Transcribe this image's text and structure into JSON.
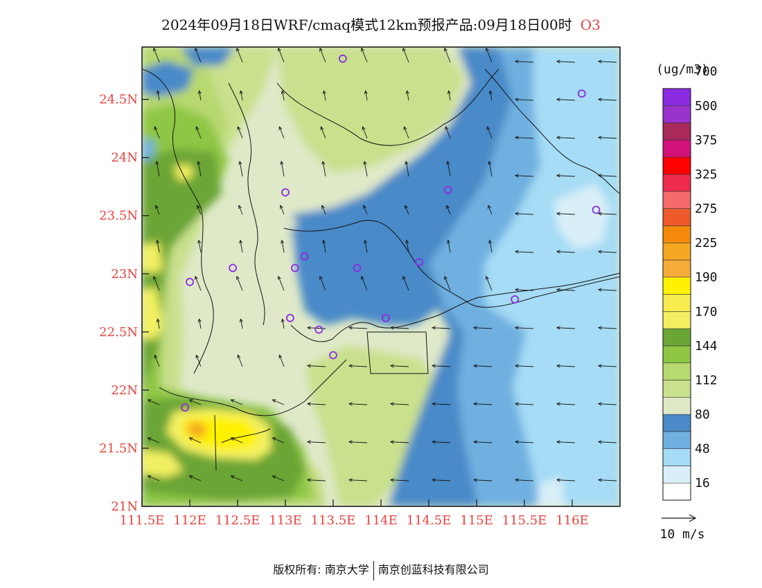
{
  "header": {
    "title": "2024年09月18日WRF/cmaq模式12km预报产品:09月18日00时",
    "species": "O3"
  },
  "map": {
    "lon_range": [
      111.5,
      116.5
    ],
    "lat_range": [
      21.0,
      24.95
    ],
    "lon_ticks": [
      "111.5E",
      "112E",
      "112.5E",
      "113E",
      "113.5E",
      "114E",
      "114.5E",
      "115E",
      "115.5E",
      "116E"
    ],
    "lat_ticks": [
      "21N",
      "21.5N",
      "22N",
      "22.5N",
      "23N",
      "23.5N",
      "24N",
      "24.5N"
    ],
    "station_markers": [
      [
        113.6,
        24.85
      ],
      [
        116.1,
        24.55
      ],
      [
        113.0,
        23.7
      ],
      [
        114.7,
        23.72
      ],
      [
        116.25,
        23.55
      ],
      [
        113.2,
        23.15
      ],
      [
        112.45,
        23.05
      ],
      [
        113.1,
        23.05
      ],
      [
        113.75,
        23.05
      ],
      [
        114.4,
        23.1
      ],
      [
        112.0,
        22.93
      ],
      [
        115.4,
        22.78
      ],
      [
        113.05,
        22.62
      ],
      [
        114.05,
        22.62
      ],
      [
        113.35,
        22.52
      ],
      [
        113.5,
        22.3
      ],
      [
        111.95,
        21.85
      ]
    ]
  },
  "colorbar": {
    "unit": "(ug/m3)",
    "colors": [
      "#ffffff",
      "#d9eff8",
      "#a6dcf5",
      "#6fb0e0",
      "#4a8ac8",
      "#dfe9c8",
      "#c9e08d",
      "#b8d870",
      "#8ec644",
      "#6aa535",
      "#f2f062",
      "#f7ec50",
      "#fff200",
      "#f6ab3a",
      "#f5a623",
      "#f58a0a",
      "#ee5a2a",
      "#f56b6b",
      "#ee2a4d",
      "#ff0000",
      "#d2127a",
      "#a8295a",
      "#9933cc",
      "#8a2be2"
    ],
    "labels": [
      "16",
      "48",
      "80",
      "112",
      "144",
      "170",
      "190",
      "225",
      "275",
      "325",
      "375",
      "500",
      "700"
    ]
  },
  "wind_legend": {
    "label": "10 m/s"
  },
  "footer": {
    "left": "版权所有: 南京大学",
    "right": "南京创蓝科技有限公司"
  }
}
